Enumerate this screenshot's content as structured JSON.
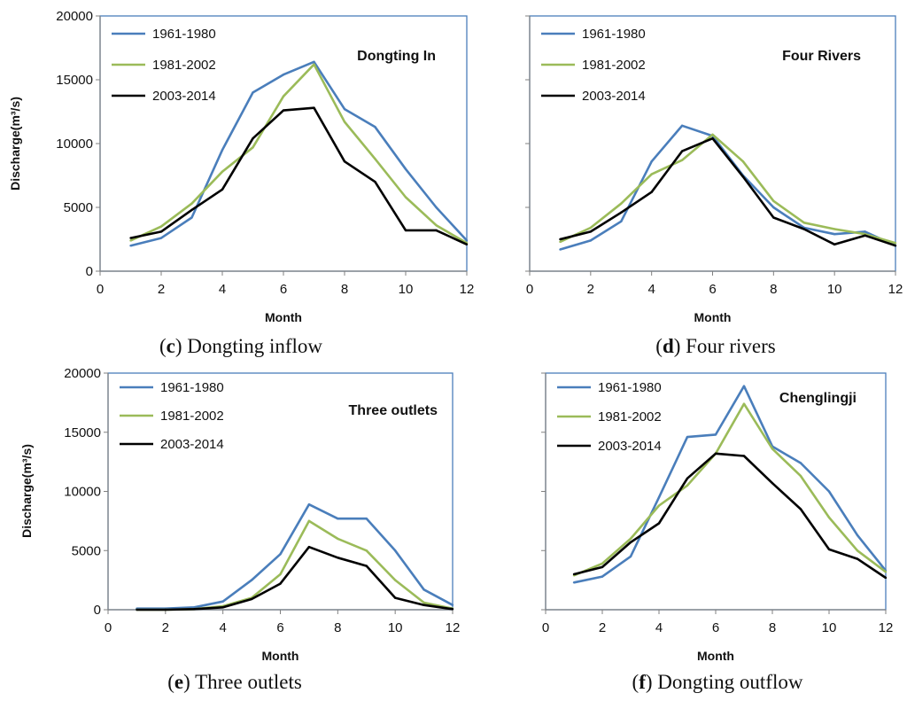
{
  "colors": {
    "series_1": "#4a7ebb",
    "series_2": "#9bbb59",
    "series_3": "#000000",
    "frame": "#4a7ebb",
    "axis": "#808080"
  },
  "chart_data": [
    {
      "type": "line",
      "panel_label": "c",
      "caption": "Dongting inflow",
      "title": "Dongting In",
      "xlabel": "Month",
      "ylabel": "Discharge(m³/s)",
      "xlim": [
        0,
        12
      ],
      "ylim": [
        0,
        20000
      ],
      "xticks": [
        0,
        2,
        4,
        6,
        8,
        10,
        12
      ],
      "yticks": [
        0,
        5000,
        10000,
        15000,
        20000
      ],
      "ytick_labels": [
        "0",
        "5000",
        "10000",
        "15000",
        "20000"
      ],
      "legend_position": "top-left",
      "x": [
        1,
        2,
        3,
        4,
        5,
        6,
        7,
        8,
        9,
        10,
        11,
        12
      ],
      "series": [
        {
          "name": "1961-1980",
          "values": [
            2000,
            2600,
            4200,
            9500,
            14000,
            15400,
            16400,
            12700,
            11300,
            8000,
            5000,
            2400
          ]
        },
        {
          "name": "1981-2002",
          "values": [
            2400,
            3500,
            5300,
            7800,
            9700,
            13700,
            16200,
            11700,
            8800,
            5800,
            3600,
            2200
          ]
        },
        {
          "name": "2003-2014",
          "values": [
            2600,
            3100,
            4800,
            6400,
            10400,
            12600,
            12800,
            8600,
            7000,
            3200,
            3200,
            2100
          ]
        }
      ]
    },
    {
      "type": "line",
      "panel_label": "d",
      "caption": "Four rivers",
      "title": "Four Rivers",
      "xlabel": "Month",
      "ylabel": "",
      "xlim": [
        0,
        12
      ],
      "ylim": [
        0,
        20000
      ],
      "xticks": [
        0,
        2,
        4,
        6,
        8,
        10,
        12
      ],
      "yticks": [
        0,
        5000,
        10000,
        15000,
        20000
      ],
      "ytick_labels": [],
      "legend_position": "top-left",
      "x": [
        1,
        2,
        3,
        4,
        5,
        6,
        7,
        8,
        9,
        10,
        11,
        12
      ],
      "series": [
        {
          "name": "1961-1980",
          "values": [
            1700,
            2400,
            3900,
            8600,
            11400,
            10600,
            7500,
            5000,
            3400,
            2900,
            3100,
            2000
          ]
        },
        {
          "name": "1981-2002",
          "values": [
            2300,
            3400,
            5300,
            7600,
            8700,
            10700,
            8600,
            5500,
            3800,
            3300,
            2900,
            2200
          ]
        },
        {
          "name": "2003-2014",
          "values": [
            2500,
            3100,
            4600,
            6200,
            9400,
            10400,
            7400,
            4200,
            3300,
            2100,
            2800,
            2000
          ]
        }
      ]
    },
    {
      "type": "line",
      "panel_label": "e",
      "caption": "Three outlets",
      "title": "Three outlets",
      "xlabel": "Month",
      "ylabel": "Discharge(m³/s)",
      "xlim": [
        0,
        12
      ],
      "ylim": [
        0,
        20000
      ],
      "xticks": [
        0,
        2,
        4,
        6,
        8,
        10,
        12
      ],
      "yticks": [
        0,
        5000,
        10000,
        15000,
        20000
      ],
      "ytick_labels": [
        "0",
        "5000",
        "10000",
        "15000",
        "20000"
      ],
      "legend_position": "top-left",
      "x": [
        1,
        2,
        3,
        4,
        5,
        6,
        7,
        8,
        9,
        10,
        11,
        12
      ],
      "series": [
        {
          "name": "1961-1980",
          "values": [
            100,
            100,
            200,
            700,
            2500,
            4700,
            8900,
            7700,
            7700,
            5000,
            1700,
            400
          ]
        },
        {
          "name": "1981-2002",
          "values": [
            0,
            0,
            50,
            300,
            1000,
            3000,
            7500,
            6000,
            5000,
            2500,
            600,
            100
          ]
        },
        {
          "name": "2003-2014",
          "values": [
            0,
            0,
            50,
            200,
            900,
            2200,
            5300,
            4400,
            3700,
            1000,
            400,
            50
          ]
        }
      ]
    },
    {
      "type": "line",
      "panel_label": "f",
      "caption": "Dongting outflow",
      "title": "Chenglingji",
      "xlabel": "Month",
      "ylabel": "",
      "xlim": [
        0,
        12
      ],
      "ylim": [
        0,
        20000
      ],
      "xticks": [
        0,
        2,
        4,
        6,
        8,
        10,
        12
      ],
      "yticks": [
        0,
        5000,
        10000,
        15000,
        20000
      ],
      "ytick_labels": [],
      "legend_position": "top-left",
      "x": [
        1,
        2,
        3,
        4,
        5,
        6,
        7,
        8,
        9,
        10,
        11,
        12
      ],
      "series": [
        {
          "name": "1961-1980",
          "values": [
            2300,
            2800,
            4500,
            9500,
            14600,
            14800,
            18900,
            13800,
            12400,
            10000,
            6300,
            3300
          ]
        },
        {
          "name": "1981-2002",
          "values": [
            2900,
            3900,
            6000,
            8800,
            10500,
            13200,
            17400,
            13600,
            11300,
            7800,
            5000,
            3200
          ]
        },
        {
          "name": "2003-2014",
          "values": [
            3000,
            3600,
            5700,
            7300,
            11100,
            13200,
            13000,
            10700,
            8500,
            5100,
            4300,
            2700
          ]
        }
      ]
    }
  ]
}
